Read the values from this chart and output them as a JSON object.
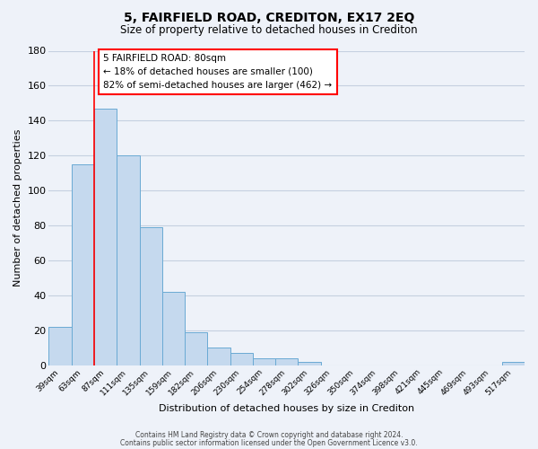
{
  "title1": "5, FAIRFIELD ROAD, CREDITON, EX17 2EQ",
  "title2": "Size of property relative to detached houses in Crediton",
  "xlabel": "Distribution of detached houses by size in Crediton",
  "ylabel": "Number of detached properties",
  "bin_labels": [
    "39sqm",
    "63sqm",
    "87sqm",
    "111sqm",
    "135sqm",
    "159sqm",
    "182sqm",
    "206sqm",
    "230sqm",
    "254sqm",
    "278sqm",
    "302sqm",
    "326sqm",
    "350sqm",
    "374sqm",
    "398sqm",
    "421sqm",
    "445sqm",
    "469sqm",
    "493sqm",
    "517sqm"
  ],
  "bar_heights": [
    22,
    115,
    147,
    120,
    79,
    42,
    19,
    10,
    7,
    4,
    4,
    2,
    0,
    0,
    0,
    0,
    0,
    0,
    0,
    0,
    2
  ],
  "bar_color": "#c5d9ee",
  "bar_edge_color": "#6aaad4",
  "ylim": [
    0,
    180
  ],
  "yticks": [
    0,
    20,
    40,
    60,
    80,
    100,
    120,
    140,
    160,
    180
  ],
  "property_line_label": "5 FAIRFIELD ROAD: 80sqm",
  "annotation_line1": "← 18% of detached houses are smaller (100)",
  "annotation_line2": "82% of semi-detached houses are larger (462) →",
  "footer1": "Contains HM Land Registry data © Crown copyright and database right 2024.",
  "footer2": "Contains public sector information licensed under the Open Government Licence v3.0.",
  "background_color": "#eef2f9",
  "plot_background": "#eef2f9",
  "grid_color": "#c5d0e0"
}
